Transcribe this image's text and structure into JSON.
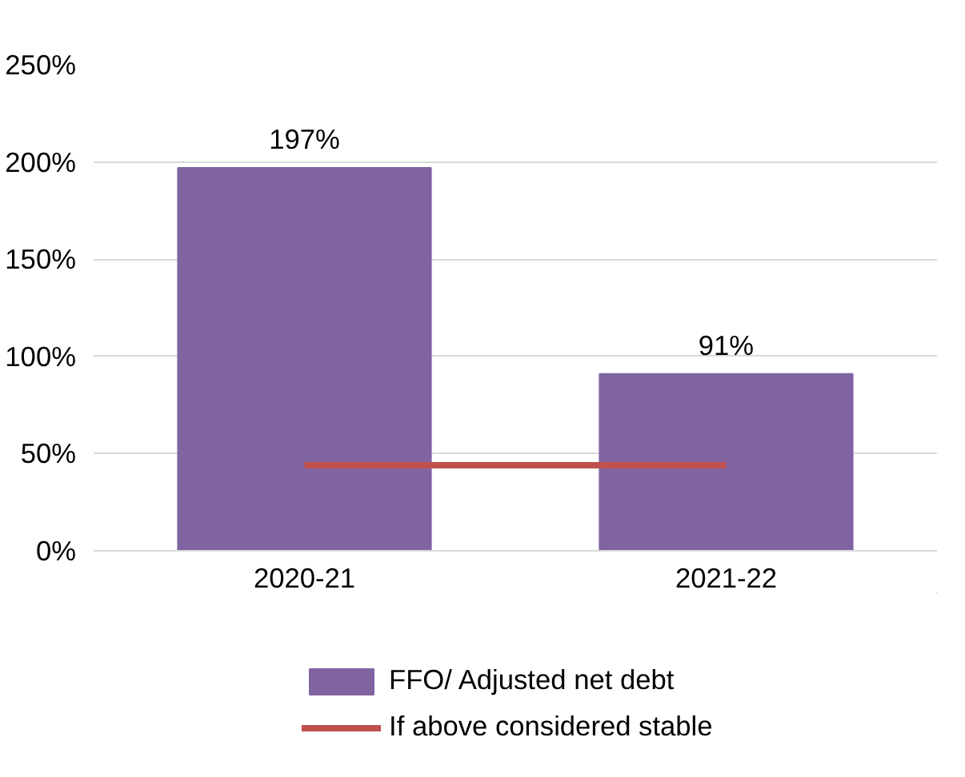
{
  "chart_data": {
    "type": "bar",
    "categories": [
      "2020-21",
      "2021-22"
    ],
    "series": [
      {
        "name": "FFO/ Adjusted net debt",
        "color": "#8064a2",
        "values": [
          197,
          91
        ],
        "value_labels": [
          "197%",
          "91%"
        ]
      },
      {
        "name": "If above considered stable",
        "type": "line",
        "color": "#c0504d",
        "values": [
          44,
          44
        ]
      }
    ],
    "ylim": [
      0,
      250
    ],
    "yticks": [
      {
        "value": 0,
        "label": "0%"
      },
      {
        "value": 50,
        "label": "50%"
      },
      {
        "value": 100,
        "label": "100%"
      },
      {
        "value": 150,
        "label": "150%"
      },
      {
        "value": 200,
        "label": "200%"
      },
      {
        "value": 250,
        "label": "250%"
      }
    ],
    "grid": "y",
    "legend": "bottom"
  }
}
